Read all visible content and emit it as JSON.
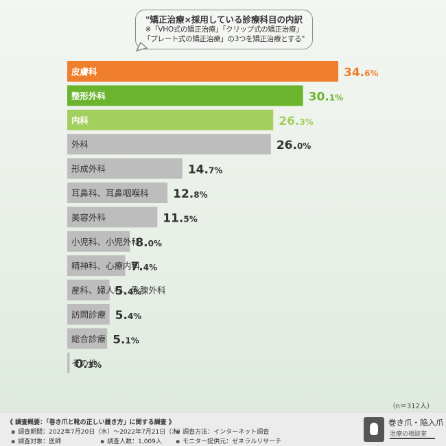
{
  "header": {
    "line1": "\"矯正治療×採用している診療科目の内訳",
    "line2": "※「VHO式の矯正治療」「クリップ式の矯正治療」",
    "line3": "「プレート式の矯正治療」の3つを矯正治療とする\""
  },
  "sample_note": "（n＝312人）",
  "colors": {
    "top1": "#f07f2d",
    "top2": "#6ab42e",
    "top3": "#a2cf5e",
    "others": "#bdbdbd",
    "other_value_text": "#333333"
  },
  "chart_data": {
    "type": "bar",
    "orientation": "horizontal",
    "title": "\"矯正治療×採用している診療科目の内訳",
    "unit": "%",
    "categories": [
      "皮膚科",
      "整形外科",
      "内科",
      "外科",
      "形成外科",
      "耳鼻科、耳鼻咽喉科",
      "美容外科",
      "小児科、小児外科",
      "精神科、心療内科",
      "産科、婦人科、乳腺外科",
      "訪問診療",
      "総合診療",
      "その他"
    ],
    "values": [
      34.6,
      30.1,
      26.3,
      26.0,
      14.7,
      12.8,
      11.5,
      8.0,
      7.4,
      5.4,
      5.4,
      5.1,
      0.3
    ],
    "value_labels": [
      {
        "int": "34.",
        "dec": "6%"
      },
      {
        "int": "30.",
        "dec": "1%"
      },
      {
        "int": "26.",
        "dec": "3%"
      },
      {
        "int": "26.",
        "dec": "0%"
      },
      {
        "int": "14.",
        "dec": "7%"
      },
      {
        "int": "12.",
        "dec": "8%"
      },
      {
        "int": "11.",
        "dec": "5%"
      },
      {
        "int": "8.",
        "dec": "0%"
      },
      {
        "int": "7.",
        "dec": "4%"
      },
      {
        "int": "5.",
        "dec": "4%"
      },
      {
        "int": "5.",
        "dec": "4%"
      },
      {
        "int": "5.",
        "dec": "1%"
      },
      {
        "int": "0.",
        "dec": "3%"
      }
    ],
    "xlim": [
      0,
      34.6
    ],
    "grid": false,
    "legend": "none"
  },
  "footer": {
    "survey_title": "《 調査概要：「巻き爪と靴の正しい履き方」に関する調査 》",
    "period": "調査期間：2022年7月20日（水）～2022年7月21日（木）",
    "method": "調査方法：インターネット調査",
    "target": "調査対象：医師",
    "count": "調査人数：1,009人",
    "provider": "モニター提供元：ゼネラルリサーチ"
  },
  "logo": {
    "name": "巻き爪・陥入爪",
    "sub": "治療の相談室"
  }
}
